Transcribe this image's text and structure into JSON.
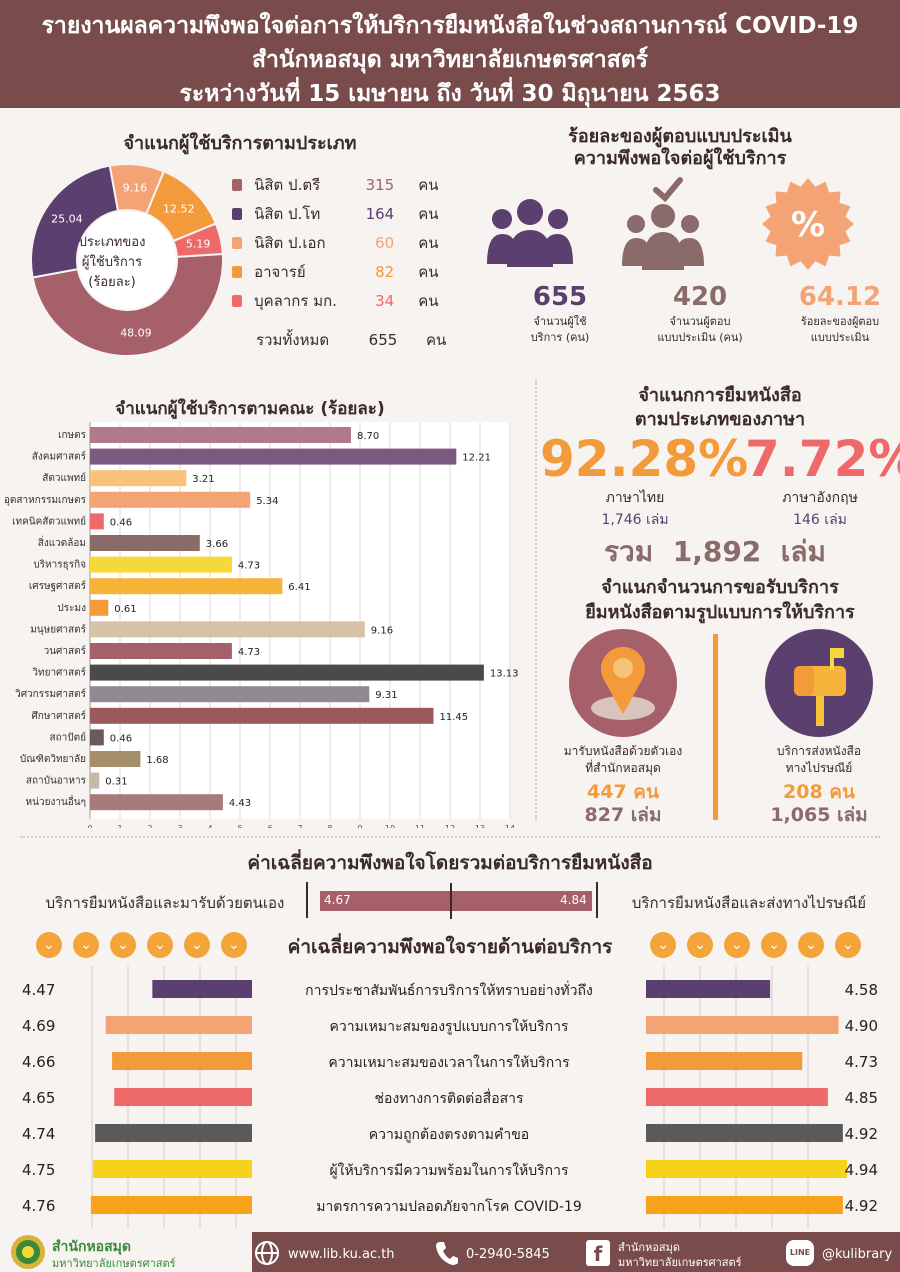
{
  "header": {
    "line1": "รายงานผลความพึงพอใจต่อการให้บริการยืมหนังสือในช่วงสถานการณ์ COVID-19",
    "line2": "สำนักหอสมุด มหาวิทยาลัยเกษตรศาสตร์",
    "line3": "ระหว่างวันที่ 15 เมษายน ถึง วันที่ 30 มิถุนายน 2563"
  },
  "user_type": {
    "title": "จำแนกผู้ใช้บริการตามประเภท",
    "center_label": [
      "ประเภทของ",
      "ผู้ใช้บริการ",
      "(ร้อยละ)"
    ],
    "items": [
      {
        "name": "นิสิต ป.ตรี",
        "count": "315",
        "unit": "คน",
        "color": "#a5606a"
      },
      {
        "name": "นิสิต ป.โท",
        "count": "164",
        "unit": "คน",
        "color": "#5b3f6e"
      },
      {
        "name": "นิสิต ป.เอก",
        "count": "60",
        "unit": "คน",
        "color": "#f4a474"
      },
      {
        "name": "อาจารย์",
        "count": "82",
        "unit": "คน",
        "color": "#f39a3a"
      },
      {
        "name": "บุคลากร มก.",
        "count": "34",
        "unit": "คน",
        "color": "#ee6a6a"
      }
    ],
    "total_label": "รวมทั้งหมด",
    "total": "655",
    "total_unit": "คน"
  },
  "response": {
    "title1": "ร้อยละของผู้ตอบแบบประเมิน",
    "title2": "ความพึงพอใจต่อผู้ใช้บริการ",
    "stats": [
      {
        "value": "655",
        "label1": "จำนวนผู้ใช้",
        "label2": "บริการ (คน)",
        "color": "#5b3f6e"
      },
      {
        "value": "420",
        "label1": "จำนวนผู้ตอบ",
        "label2": "แบบประเมิน (คน)",
        "color": "#8b6a6a"
      },
      {
        "value": "64.12",
        "label1": "ร้อยละของผู้ตอบ",
        "label2": "แบบประเมิน",
        "color": "#f4a474"
      }
    ]
  },
  "language": {
    "title1": "จำแนกการยืมหนังสือ",
    "title2": "ตามประเภทของภาษา",
    "thai_pct": "92.28%",
    "thai_label": "ภาษาไทย",
    "thai_books": "1,746 เล่ม",
    "eng_pct": "7.72%",
    "eng_label": "ภาษาอังกฤษ",
    "eng_books": "146 เล่ม",
    "total_prefix": "รวม",
    "total": "1,892",
    "total_unit": "เล่ม"
  },
  "service_mode": {
    "title1": "จำแนกจำนวนการขอรับบริการ",
    "title2": "ยืมหนังสือตามรูปแบบการให้บริการ",
    "left": {
      "label1": "มารับหนังสือด้วยตัวเอง",
      "label2": "ที่สำนักหอสมุด",
      "people": "447 คน",
      "books": "827 เล่ม"
    },
    "right": {
      "label1": "บริการส่งหนังสือ",
      "label2": "ทางไปรษณีย์",
      "people": "208 คน",
      "books": "1,065 เล่ม"
    }
  },
  "overall": {
    "title": "ค่าเฉลี่ยความพึงพอใจโดยรวมต่อบริการยืมหนังสือ",
    "left_label": "บริการยืมหนังสือและมารับด้วยตนเอง",
    "right_label": "บริการยืมหนังสือและส่งทางไปรษณีย์",
    "left_value": "4.67",
    "right_value": "4.84"
  },
  "aspects": {
    "title": "ค่าเฉลี่ยความพึงพอใจรายด้านต่อบริการ",
    "items": [
      {
        "label": "การประชาสัมพันธ์การบริการให้ทราบอย่างทั่วถึง",
        "left": "4.47",
        "right": "4.58",
        "left_num": 4.47,
        "right_num": 4.58,
        "color": "#5b3f6e"
      },
      {
        "label": "ความเหมาะสมของรูปแบบการให้บริการ",
        "left": "4.69",
        "right": "4.90",
        "left_num": 4.69,
        "right_num": 4.9,
        "color": "#f4a474"
      },
      {
        "label": "ความเหมาะสมของเวลาในการให้บริการ",
        "left": "4.66",
        "right": "4.73",
        "left_num": 4.66,
        "right_num": 4.73,
        "color": "#f39a3a"
      },
      {
        "label": "ช่องทางการติดต่อสื่อสาร",
        "left": "4.65",
        "right": "4.85",
        "left_num": 4.65,
        "right_num": 4.85,
        "color": "#ee6a6a"
      },
      {
        "label": "ความถูกต้องตรงตามคำขอ",
        "left": "4.74",
        "right": "4.92",
        "left_num": 4.74,
        "right_num": 4.92,
        "color": "#5a5a5a"
      },
      {
        "label": "ผู้ให้บริการมีความพร้อมในการให้บริการ",
        "left": "4.75",
        "right": "4.94",
        "left_num": 4.75,
        "right_num": 4.94,
        "color": "#f6d21a"
      },
      {
        "label": "มาตรการความปลอดภัยจากโรค COVID-19",
        "left": "4.76",
        "right": "4.92",
        "left_num": 4.76,
        "right_num": 4.92,
        "color": "#f7a31c"
      }
    ]
  },
  "footer": {
    "org1": "สำนักหอสมุด",
    "org2": "มหาวิทยาลัยเกษตรศาสตร์",
    "web": "www.lib.ku.ac.th",
    "phone": "0-2940-5845",
    "fb1": "สำนักหอสมุด",
    "fb2": "มหาวิทยาลัยเกษตรศาสตร์",
    "line_badge": "LINE",
    "line": "@kulibrary"
  },
  "chart_data": [
    {
      "type": "pie",
      "title": "",
      "categories": [
        "นิสิต ป.ตรี",
        "นิสิต ป.โท",
        "อาจารย์",
        "นิสิต ป.เอก",
        "บุคลากร มก."
      ],
      "values": [
        48.09,
        25.04,
        12.52,
        9.16,
        5.19
      ],
      "colors": [
        "#a5606a",
        "#5b3f6e",
        "#f39a3a",
        "#f4a474",
        "#ee6a6a"
      ],
      "donut": true
    },
    {
      "type": "bar",
      "orientation": "horizontal",
      "title": "จำแนกผู้ใช้บริการตามคณะ (ร้อยละ)",
      "categories": [
        "เกษตร",
        "สังคมศาสตร์",
        "สัตวแพทย์",
        "อุตสาหกรรมเกษตร",
        "เทคนิคสัตวแพทย์",
        "สิ่งแวดล้อม",
        "บริหารธุรกิจ",
        "เศรษฐศาสตร์",
        "ประมง",
        "มนุษยศาสตร์",
        "วนศาสตร์",
        "วิทยาศาสตร์",
        "วิศวกรรมศาสตร์",
        "ศึกษาศาสตร์",
        "สถาปัตย์",
        "บัณฑิตวิทยาลัย",
        "สถาบันอาหาร",
        "หน่วยงานอื่นๆ"
      ],
      "values": [
        8.7,
        12.21,
        3.21,
        5.34,
        0.46,
        3.66,
        4.73,
        6.41,
        0.61,
        9.16,
        4.73,
        13.13,
        9.31,
        11.45,
        0.46,
        1.68,
        0.31,
        4.43
      ],
      "value_labels": [
        "8.70",
        "12.21",
        "3.21",
        "5.34",
        "0.46",
        "3.66",
        "4.73",
        "6.41",
        "0.61",
        "9.16",
        "4.73",
        "13.13",
        "9.31",
        "11.45",
        "0.46",
        "1.68",
        "0.31",
        "4.43"
      ],
      "colors": [
        "#b07a8a",
        "#7a5a7e",
        "#f7c27a",
        "#f4a474",
        "#ee6a6a",
        "#8b6a6a",
        "#f6d83a",
        "#f6b53a",
        "#f39a3a",
        "#d6c2a8",
        "#a5606a",
        "#4a4a4a",
        "#8f8a8f",
        "#9a5a5a",
        "#6a5a5a",
        "#a58f6a",
        "#c7b8a8",
        "#a87a7a"
      ],
      "xlim": [
        0,
        14
      ],
      "xticks": [
        "0",
        "1",
        "2",
        "3",
        "4",
        "5",
        "6",
        "7",
        "8",
        "9",
        "10",
        "11",
        "12",
        "13",
        "14"
      ],
      "grid": true
    }
  ]
}
